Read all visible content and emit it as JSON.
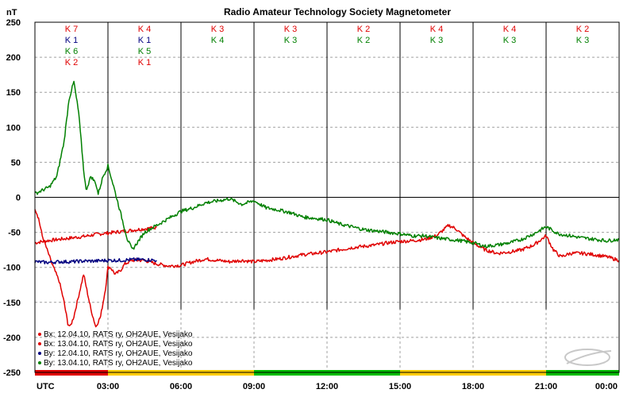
{
  "chart_data": {
    "type": "line",
    "title": "Radio Amateur Technology Society Magnetometer",
    "ylabel": "nT",
    "xlabel": "UTC",
    "ylim": [
      -250,
      250
    ],
    "xlim": [
      0,
      24
    ],
    "yticks": [
      250,
      200,
      150,
      100,
      50,
      0,
      -50,
      -100,
      -150,
      -200,
      -250
    ],
    "xticks": [
      {
        "x": 3,
        "label": "03:00"
      },
      {
        "x": 6,
        "label": "06:00"
      },
      {
        "x": 9,
        "label": "09:00"
      },
      {
        "x": 12,
        "label": "12:00"
      },
      {
        "x": 15,
        "label": "15:00"
      },
      {
        "x": 18,
        "label": "18:00"
      },
      {
        "x": 21,
        "label": "21:00"
      },
      {
        "x": 24,
        "label": "00:00"
      }
    ],
    "grid": true,
    "colors": {
      "red": "#e00000",
      "navy": "#000080",
      "green": "#008000",
      "bar_red": "#e00000",
      "bar_yellow": "#ffcc00",
      "bar_green": "#00bb00"
    },
    "k_index": [
      {
        "x": 1.5,
        "labels": [
          {
            "text": "K 7",
            "color": "red"
          },
          {
            "text": "K 1",
            "color": "navy"
          },
          {
            "text": "K 6",
            "color": "green"
          },
          {
            "text": "K 2",
            "color": "red"
          }
        ]
      },
      {
        "x": 4.5,
        "labels": [
          {
            "text": "K 4",
            "color": "red"
          },
          {
            "text": "K 1",
            "color": "navy"
          },
          {
            "text": "K 5",
            "color": "green"
          },
          {
            "text": "K 1",
            "color": "red"
          }
        ]
      },
      {
        "x": 7.5,
        "labels": [
          {
            "text": "K 3",
            "color": "red"
          },
          {
            "text": "K 4",
            "color": "green"
          }
        ]
      },
      {
        "x": 10.5,
        "labels": [
          {
            "text": "K 3",
            "color": "red"
          },
          {
            "text": "K 3",
            "color": "green"
          }
        ]
      },
      {
        "x": 13.5,
        "labels": [
          {
            "text": "K 2",
            "color": "red"
          },
          {
            "text": "K 2",
            "color": "green"
          }
        ]
      },
      {
        "x": 16.5,
        "labels": [
          {
            "text": "K 4",
            "color": "red"
          },
          {
            "text": "K 3",
            "color": "green"
          }
        ]
      },
      {
        "x": 19.5,
        "labels": [
          {
            "text": "K 4",
            "color": "red"
          },
          {
            "text": "K 3",
            "color": "green"
          }
        ]
      },
      {
        "x": 22.5,
        "labels": [
          {
            "text": "K 2",
            "color": "red"
          },
          {
            "text": "K 3",
            "color": "green"
          }
        ]
      }
    ],
    "activity_bar": [
      {
        "from": 0,
        "to": 3,
        "color": "bar_red"
      },
      {
        "from": 3,
        "to": 9,
        "color": "bar_yellow"
      },
      {
        "from": 9,
        "to": 15,
        "color": "bar_green"
      },
      {
        "from": 15,
        "to": 21,
        "color": "bar_yellow"
      },
      {
        "from": 21,
        "to": 24,
        "color": "bar_green"
      }
    ],
    "series": [
      {
        "name": "Bx: 12.04.10, RATS ry, OH2AUE, Vesijako",
        "color": "red",
        "x": [
          0,
          0.5,
          1,
          1.5,
          2,
          2.5,
          3,
          3.5,
          4,
          4.5,
          5
        ],
        "y": [
          -65,
          -62,
          -60,
          -58,
          -56,
          -53,
          -51,
          -49,
          -47,
          -45,
          -43
        ]
      },
      {
        "name": "Bx: 13.04.10, RATS ry, OH2AUE, Vesijako",
        "color": "red",
        "x": [
          0,
          0.15,
          0.3,
          0.5,
          0.7,
          1.0,
          1.2,
          1.35,
          1.45,
          1.6,
          1.8,
          2.0,
          2.3,
          2.5,
          2.7,
          2.9,
          3.0,
          3.1,
          3.3,
          3.5,
          3.7,
          4.0,
          4.5,
          5.0,
          5.5,
          6.0,
          6.5,
          7.0,
          7.5,
          8.0,
          8.5,
          9.0,
          9.5,
          10.0,
          10.5,
          11.0,
          11.5,
          12.0,
          12.5,
          13.0,
          13.5,
          14.0,
          14.5,
          15.0,
          15.5,
          16.0,
          16.5,
          17.0,
          17.3,
          17.6,
          18.0,
          18.5,
          19.0,
          19.5,
          20.0,
          20.5,
          21.0,
          21.3,
          21.6,
          22.0,
          22.5,
          23.0,
          23.5,
          24.0
        ],
        "y": [
          -15,
          -30,
          -55,
          -75,
          -95,
          -120,
          -150,
          -180,
          -185,
          -170,
          -140,
          -110,
          -160,
          -185,
          -170,
          -130,
          -100,
          -100,
          -110,
          -105,
          -95,
          -90,
          -90,
          -95,
          -98,
          -97,
          -92,
          -88,
          -90,
          -92,
          -90,
          -92,
          -90,
          -88,
          -85,
          -82,
          -80,
          -78,
          -75,
          -72,
          -70,
          -68,
          -65,
          -63,
          -62,
          -60,
          -55,
          -40,
          -45,
          -55,
          -65,
          -75,
          -80,
          -78,
          -75,
          -68,
          -55,
          -75,
          -85,
          -80,
          -80,
          -82,
          -85,
          -90
        ]
      },
      {
        "name": "By: 12.04.10, RATS ry, OH2AUE, Vesijako",
        "color": "navy",
        "x": [
          0,
          0.5,
          1,
          1.5,
          2,
          2.5,
          3,
          3.5,
          4,
          4.5,
          5
        ],
        "y": [
          -92,
          -93,
          -92,
          -92,
          -91,
          -91,
          -90,
          -90,
          -89,
          -89,
          -90
        ]
      },
      {
        "name": "By: 13.04.10, RATS ry, OH2AUE, Vesijako",
        "color": "green",
        "x": [
          0,
          0.3,
          0.6,
          0.9,
          1.2,
          1.4,
          1.6,
          1.8,
          2.0,
          2.1,
          2.3,
          2.5,
          2.6,
          2.8,
          3.0,
          3.2,
          3.5,
          3.8,
          4.0,
          4.5,
          5.0,
          5.5,
          6.0,
          6.5,
          7.0,
          7.5,
          8.0,
          8.5,
          9.0,
          9.5,
          10.0,
          10.5,
          11.0,
          11.5,
          12.0,
          12.5,
          13.0,
          13.5,
          14.0,
          14.5,
          15.0,
          15.5,
          16.0,
          16.5,
          17.0,
          17.5,
          18.0,
          18.5,
          19.0,
          19.5,
          20.0,
          20.5,
          21.0,
          21.5,
          22.0,
          22.5,
          23.0,
          23.5,
          24.0
        ],
        "y": [
          5,
          10,
          15,
          30,
          80,
          140,
          165,
          120,
          40,
          10,
          30,
          20,
          5,
          30,
          45,
          20,
          -20,
          -60,
          -75,
          -50,
          -40,
          -30,
          -20,
          -15,
          -8,
          -5,
          -2,
          -10,
          -5,
          -15,
          -18,
          -22,
          -28,
          -30,
          -32,
          -38,
          -42,
          -46,
          -48,
          -50,
          -52,
          -55,
          -55,
          -58,
          -60,
          -62,
          -65,
          -70,
          -68,
          -65,
          -60,
          -52,
          -42,
          -52,
          -55,
          -58,
          -60,
          -62,
          -60
        ]
      }
    ],
    "legend": {
      "placement": "bottom-left"
    }
  }
}
